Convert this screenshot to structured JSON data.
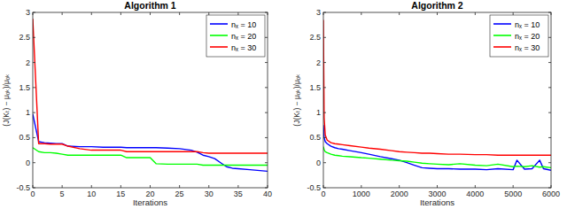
{
  "chart_data": [
    {
      "type": "line",
      "title": "Algorithm 1",
      "x_label": "Iterations",
      "y_label": "(J(Kₜ) − μₒₖ)/μₒₖ",
      "x": [
        0,
        1,
        2,
        3,
        4,
        5,
        6,
        8,
        10,
        12,
        15,
        16,
        18,
        20,
        21,
        23,
        25,
        27,
        28,
        29,
        30,
        31,
        32,
        33,
        34,
        35,
        37,
        40
      ],
      "series": [
        {
          "name": "nₓ = 10",
          "color": "#0000ff",
          "values": [
            0.97,
            0.42,
            0.4,
            0.39,
            0.38,
            0.38,
            0.33,
            0.32,
            0.32,
            0.31,
            0.31,
            0.3,
            0.3,
            0.3,
            0.3,
            0.29,
            0.28,
            0.25,
            0.21,
            0.15,
            0.12,
            0.08,
            0.0,
            -0.08,
            -0.11,
            -0.12,
            -0.14,
            -0.17
          ]
        },
        {
          "name": "nₓ = 20",
          "color": "#00ff00",
          "values": [
            0.3,
            0.22,
            0.2,
            0.2,
            0.19,
            0.17,
            0.15,
            0.15,
            0.15,
            0.15,
            0.15,
            0.1,
            0.1,
            0.1,
            -0.02,
            -0.03,
            -0.03,
            -0.03,
            -0.03,
            -0.05,
            -0.05,
            -0.05,
            -0.05,
            -0.05,
            -0.05,
            -0.05,
            -0.05,
            -0.05
          ]
        },
        {
          "name": "nₓ = 30",
          "color": "#ff0000",
          "values": [
            2.87,
            0.38,
            0.38,
            0.37,
            0.37,
            0.37,
            0.33,
            0.28,
            0.25,
            0.25,
            0.25,
            0.22,
            0.22,
            0.22,
            0.22,
            0.22,
            0.22,
            0.22,
            0.22,
            0.2,
            0.19,
            0.19,
            0.19,
            0.19,
            0.19,
            0.19,
            0.19,
            0.19
          ]
        }
      ],
      "xlim": [
        0,
        40
      ],
      "xticks": [
        0,
        5,
        10,
        15,
        20,
        25,
        30,
        35,
        40
      ],
      "ylim": [
        -0.5,
        3
      ],
      "yticks": [
        -0.5,
        0,
        0.5,
        1,
        1.5,
        2,
        2.5,
        3
      ],
      "grid": false,
      "legend": "upper right",
      "line_style": "solid"
    },
    {
      "type": "line",
      "title": "Algorithm 2",
      "x_label": "Iterations",
      "y_label": "(J(Kₜ) − μₒₖ)/μₒₖ",
      "x": [
        0,
        20,
        50,
        100,
        200,
        300,
        400,
        500,
        700,
        1000,
        1200,
        1500,
        1800,
        2000,
        2200,
        2400,
        2600,
        2800,
        3000,
        3300,
        3600,
        4000,
        4300,
        4600,
        5000,
        5100,
        5300,
        5500,
        5700,
        5800,
        6000
      ],
      "series": [
        {
          "name": "nₓ = 10",
          "color": "#0000ff",
          "values": [
            0.75,
            0.5,
            0.42,
            0.38,
            0.33,
            0.3,
            0.28,
            0.27,
            0.24,
            0.2,
            0.17,
            0.12,
            0.08,
            0.05,
            0.0,
            -0.05,
            -0.1,
            -0.11,
            -0.12,
            -0.12,
            -0.13,
            -0.13,
            -0.14,
            -0.12,
            -0.14,
            0.05,
            -0.13,
            -0.12,
            0.05,
            -0.12,
            -0.15
          ]
        },
        {
          "name": "nₓ = 20",
          "color": "#00ff00",
          "values": [
            0.32,
            0.26,
            0.22,
            0.2,
            0.17,
            0.15,
            0.14,
            0.13,
            0.12,
            0.1,
            0.09,
            0.07,
            0.05,
            0.04,
            0.03,
            0.01,
            -0.01,
            -0.02,
            -0.03,
            -0.04,
            -0.02,
            -0.05,
            -0.06,
            -0.03,
            -0.08,
            -0.07,
            -0.08,
            -0.06,
            -0.09,
            -0.08,
            -0.1
          ]
        },
        {
          "name": "nₓ = 30",
          "color": "#ff0000",
          "values": [
            2.85,
            0.9,
            0.55,
            0.45,
            0.4,
            0.38,
            0.37,
            0.36,
            0.34,
            0.31,
            0.29,
            0.27,
            0.24,
            0.22,
            0.21,
            0.2,
            0.19,
            0.19,
            0.18,
            0.17,
            0.17,
            0.16,
            0.16,
            0.15,
            0.15,
            0.15,
            0.15,
            0.15,
            0.15,
            0.15,
            0.15
          ]
        }
      ],
      "xlim": [
        0,
        6000
      ],
      "xticks": [
        0,
        1000,
        2000,
        3000,
        4000,
        5000,
        6000
      ],
      "ylim": [
        -0.5,
        3
      ],
      "yticks": [
        -0.5,
        0,
        0.5,
        1,
        1.5,
        2,
        2.5,
        3
      ],
      "grid": false,
      "legend": "upper right",
      "line_style": "solid"
    }
  ]
}
